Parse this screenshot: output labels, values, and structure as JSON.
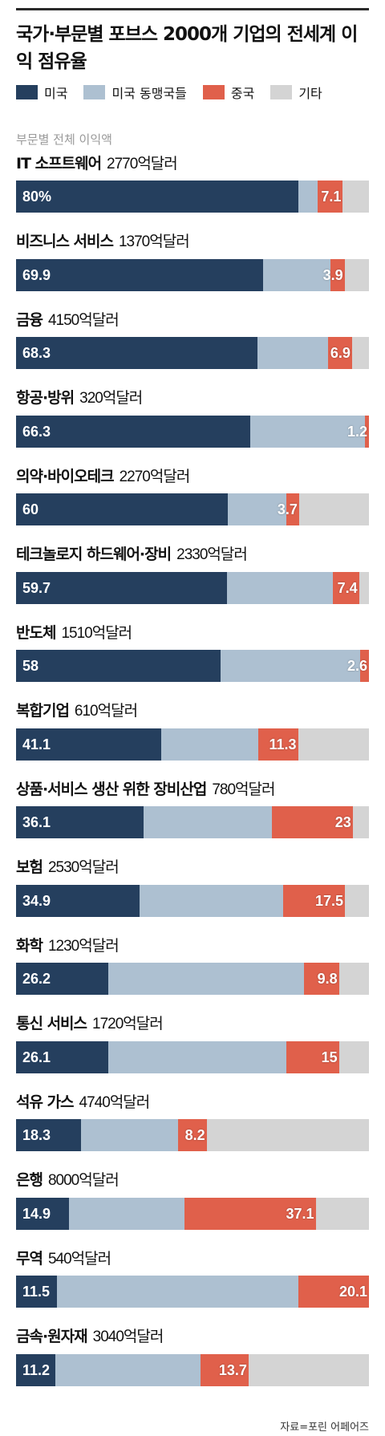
{
  "title": "국가·부문별 포브스 2000개 기업의 전세계 이익 점유율",
  "legend": [
    {
      "label": "미국",
      "color": "#253f5e"
    },
    {
      "label": "미국 동맹국들",
      "color": "#adc0d1"
    },
    {
      "label": "중국",
      "color": "#e0604b"
    },
    {
      "label": "기타",
      "color": "#d4d4d4"
    }
  ],
  "section_label": "부문별 전체 이익액",
  "source": "자료=포린 어페어즈",
  "chart_data": {
    "type": "bar",
    "stacked": true,
    "orientation": "horizontal",
    "xlim": [
      0,
      100
    ],
    "series_names": [
      "미국",
      "미국 동맹국들",
      "중국",
      "기타"
    ],
    "categories": [
      {
        "name": "IT 소프트웨어",
        "total": "2770억달러",
        "us": 80,
        "allies": 5.5,
        "china": 7.1,
        "label_us": "80%",
        "label_china": "7.1"
      },
      {
        "name": "비즈니스 서비스",
        "total": "1370억달러",
        "us": 69.9,
        "allies": 19.3,
        "china": 3.9,
        "label_us": "69.9",
        "label_china": "3.9"
      },
      {
        "name": "금융",
        "total": "4150억달러",
        "us": 68.3,
        "allies": 20,
        "china": 6.9,
        "label_us": "68.3",
        "label_china": "6.9"
      },
      {
        "name": "항공·방위",
        "total": "320억달러",
        "us": 66.3,
        "allies": 32.5,
        "china": 1.2,
        "label_us": "66.3",
        "label_china": "1.2"
      },
      {
        "name": "의약·바이오테크",
        "total": "2270억달러",
        "us": 60,
        "allies": 16.5,
        "china": 3.7,
        "label_us": "60",
        "label_china": "3.7"
      },
      {
        "name": "테크놀로지 하드웨어·장비",
        "total": "2330억달러",
        "us": 59.7,
        "allies": 30.1,
        "china": 7.4,
        "label_us": "59.7",
        "label_china": "7.4"
      },
      {
        "name": "반도체",
        "total": "1510억달러",
        "us": 58,
        "allies": 39.4,
        "china": 2.6,
        "label_us": "58",
        "label_china": "2.6"
      },
      {
        "name": "복합기업",
        "total": "610억달러",
        "us": 41.1,
        "allies": 27.5,
        "china": 11.3,
        "label_us": "41.1",
        "label_china": "11.3"
      },
      {
        "name": "상품·서비스 생산 위한 장비산업",
        "total": "780억달러",
        "us": 36.1,
        "allies": 36.3,
        "china": 23,
        "label_us": "36.1",
        "label_china": "23"
      },
      {
        "name": "보험",
        "total": "2530억달러",
        "us": 34.9,
        "allies": 40.8,
        "china": 17.5,
        "label_us": "34.9",
        "label_china": "17.5"
      },
      {
        "name": "화학",
        "total": "1230억달러",
        "us": 26.2,
        "allies": 55.5,
        "china": 9.8,
        "label_us": "26.2",
        "label_china": "9.8"
      },
      {
        "name": "통신 서비스",
        "total": "1720억달러",
        "us": 26.1,
        "allies": 50.4,
        "china": 15,
        "label_us": "26.1",
        "label_china": "15"
      },
      {
        "name": "석유 가스",
        "total": "4740억달러",
        "us": 18.3,
        "allies": 27.5,
        "china": 8.2,
        "label_us": "18.3",
        "label_china": "8.2"
      },
      {
        "name": "은행",
        "total": "8000억달러",
        "us": 14.9,
        "allies": 32.9,
        "china": 37.1,
        "label_us": "14.9",
        "label_china": "37.1"
      },
      {
        "name": "무역",
        "total": "540억달러",
        "us": 11.5,
        "allies": 68.4,
        "china": 20.1,
        "label_us": "11.5",
        "label_china": "20.1"
      },
      {
        "name": "금속·원자재",
        "total": "3040억달러",
        "us": 11.2,
        "allies": 41,
        "china": 13.7,
        "label_us": "11.2",
        "label_china": "13.7"
      }
    ]
  }
}
